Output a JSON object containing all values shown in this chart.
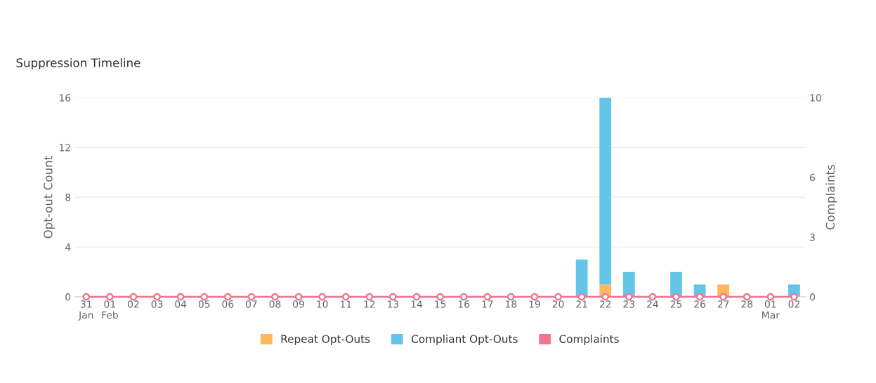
{
  "chart_data": {
    "type": "bar",
    "title": "Suppression Timeline",
    "ylabel": "Opt-out Count",
    "y2label": "Complaints",
    "categories": [
      "31\nJan",
      "01\nFeb",
      "02",
      "03",
      "04",
      "05",
      "06",
      "07",
      "08",
      "09",
      "10",
      "11",
      "12",
      "13",
      "14",
      "15",
      "16",
      "17",
      "18",
      "19",
      "20",
      "21",
      "22",
      "23",
      "24",
      "25",
      "26",
      "27",
      "28",
      "01\nMar",
      "02"
    ],
    "stacked": true,
    "series": [
      {
        "name": "Repeat Opt-Outs",
        "color": "#ffb75d",
        "values": [
          0,
          0,
          0,
          0,
          0,
          0,
          0,
          0,
          0,
          0,
          0,
          0,
          0,
          0,
          0,
          0,
          0,
          0,
          0,
          0,
          0,
          0,
          1,
          0,
          0,
          0,
          0,
          1,
          0,
          0,
          0
        ]
      },
      {
        "name": "Compliant Opt-Outs",
        "color": "#63c6e8",
        "values": [
          0,
          0,
          0,
          0,
          0,
          0,
          0,
          0,
          0,
          0,
          0,
          0,
          0,
          0,
          0,
          0,
          0,
          0,
          0,
          0,
          0,
          3,
          15,
          2,
          0,
          2,
          1,
          0,
          0,
          0,
          1
        ]
      },
      {
        "name": "Complaints",
        "color": "#f0768f",
        "type": "line",
        "axis": "y2",
        "marker": "circle",
        "values": [
          0,
          0,
          0,
          0,
          0,
          0,
          0,
          0,
          0,
          0,
          0,
          0,
          0,
          0,
          0,
          0,
          0,
          0,
          0,
          0,
          0,
          0,
          0,
          0,
          0,
          0,
          0,
          0,
          0,
          0,
          0
        ]
      }
    ],
    "ylim": [
      0,
      16
    ],
    "yticks": [
      0,
      4,
      8,
      12,
      16
    ],
    "y2lim": [
      0,
      10
    ],
    "y2ticks": [
      0,
      3,
      6,
      10
    ],
    "grid": "y",
    "legend": "bottom"
  }
}
